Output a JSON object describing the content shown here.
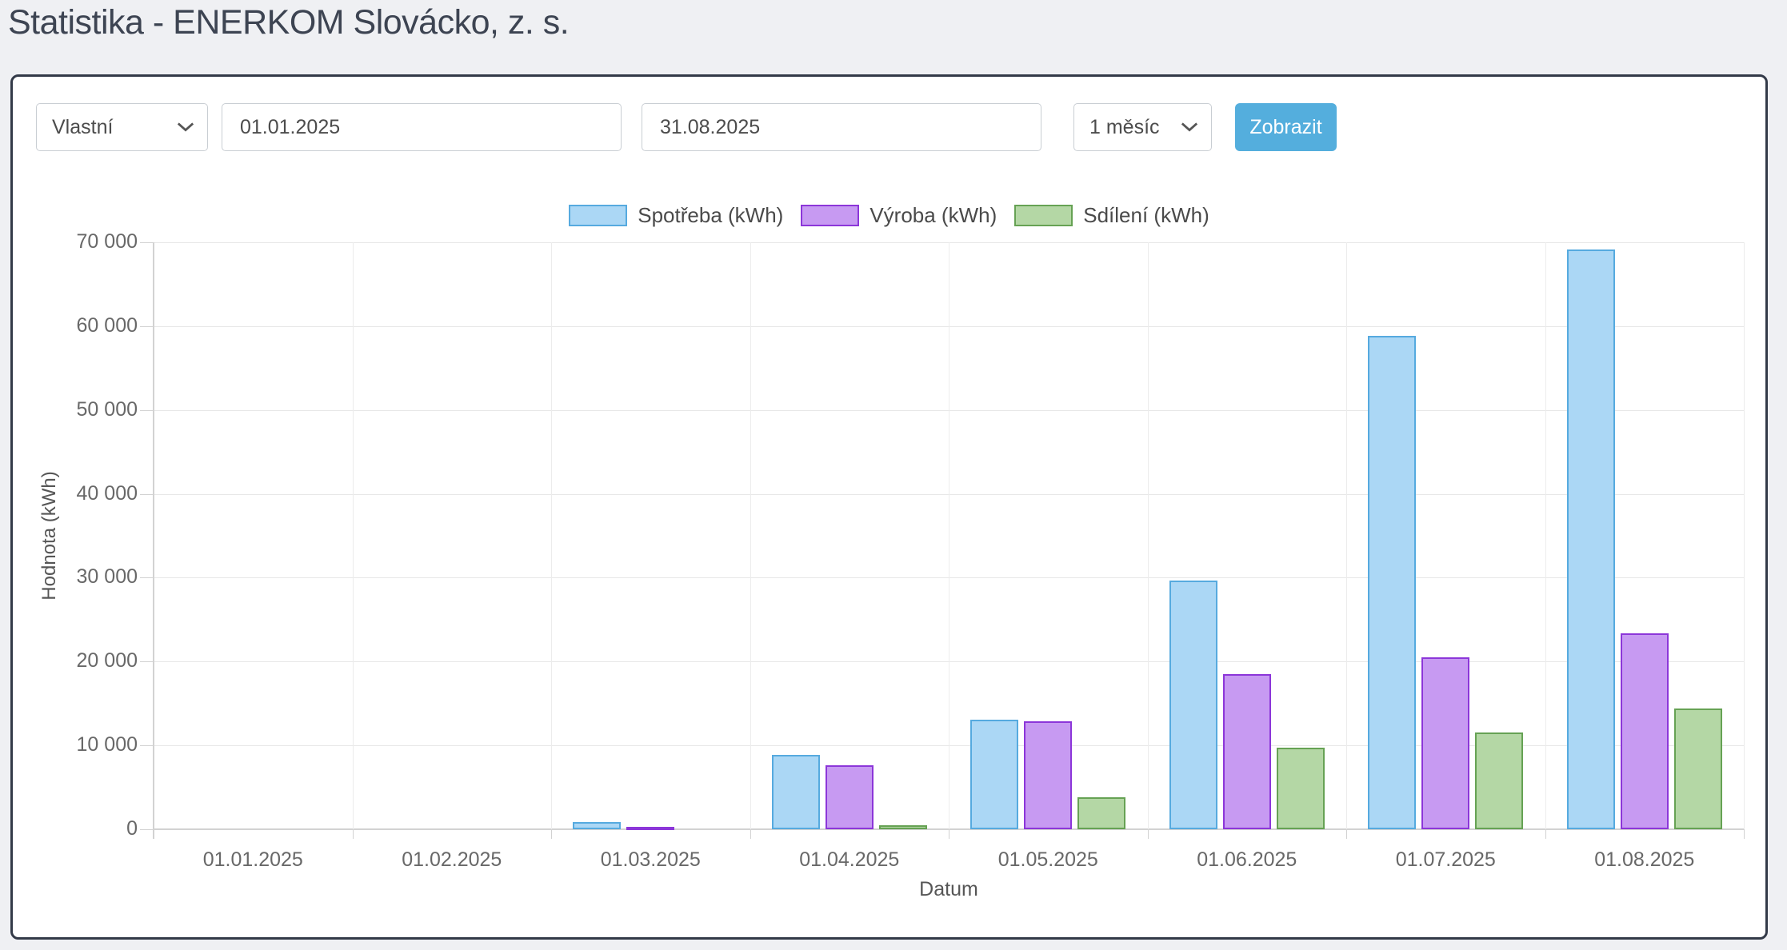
{
  "page_title": "Statistika - ENERKOM Slovácko, z. s.",
  "controls": {
    "range_select": {
      "value": "Vlastní"
    },
    "date_from": {
      "value": "01.01.2025"
    },
    "date_to": {
      "value": "31.08.2025"
    },
    "interval_select": {
      "value": "1 měsíc"
    },
    "show_button_label": "Zobrazit"
  },
  "colors": {
    "button": "#54aedd",
    "panel_border": "#333a48",
    "page_background": "#eff0f3"
  },
  "chart_data": {
    "type": "bar",
    "title": "",
    "xlabel": "Datum",
    "ylabel": "Hodnota (kWh)",
    "ylim": [
      0,
      70000
    ],
    "ytick_step": 10000,
    "grid": true,
    "legend_position": "top",
    "categories": [
      "01.01.2025",
      "01.02.2025",
      "01.03.2025",
      "01.04.2025",
      "01.05.2025",
      "01.06.2025",
      "01.07.2025",
      "01.08.2025"
    ],
    "series": [
      {
        "name": "Spotřeba (kWh)",
        "fill": "#abd7f5",
        "border": "#56aadf",
        "values": [
          0,
          0,
          900,
          8900,
          13100,
          29700,
          58800,
          69100
        ]
      },
      {
        "name": "Výroba (kWh)",
        "fill": "#c79af2",
        "border": "#8c36d9",
        "values": [
          0,
          0,
          300,
          7600,
          12900,
          18500,
          20500,
          23400
        ]
      },
      {
        "name": "Sdílení (kWh)",
        "fill": "#b4d7a5",
        "border": "#66a254",
        "values": [
          0,
          0,
          0,
          500,
          3800,
          9700,
          11500,
          14400
        ]
      }
    ]
  }
}
